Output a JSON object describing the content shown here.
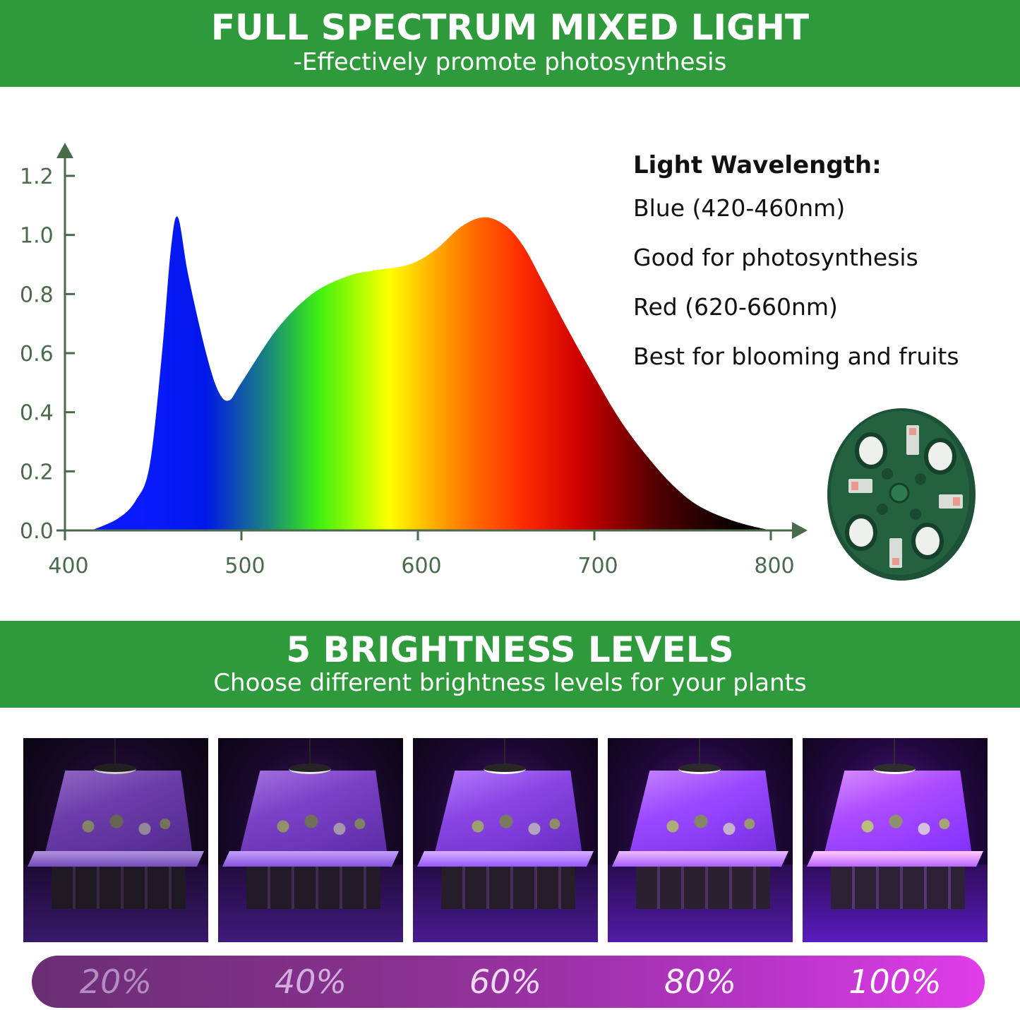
{
  "header": {
    "title": "FULL SPECTRUM MIXED LIGHT",
    "subtitle": "-Effectively promote photosynthesis"
  },
  "chart_data": {
    "type": "area",
    "title": "",
    "xlabel": "",
    "ylabel": "",
    "xlim": [
      400,
      800
    ],
    "ylim": [
      0,
      1.2
    ],
    "x_ticks": [
      "400",
      "500",
      "600",
      "700",
      "800"
    ],
    "y_ticks": [
      "0.0",
      "0.2",
      "0.4",
      "0.6",
      "0.8",
      "1.0",
      "1.2"
    ],
    "grid": false,
    "fill": "visible-spectrum gradient (blue to green to yellow to red to black)",
    "x": [
      415,
      430,
      440,
      448,
      455,
      460,
      464,
      470,
      480,
      487,
      493,
      500,
      520,
      540,
      560,
      575,
      595,
      610,
      625,
      638,
      650,
      660,
      670,
      685,
      700,
      715,
      730,
      745,
      760,
      780,
      800
    ],
    "values": [
      0,
      0.04,
      0.1,
      0.22,
      0.6,
      0.95,
      1.06,
      0.86,
      0.6,
      0.47,
      0.44,
      0.5,
      0.68,
      0.8,
      0.86,
      0.88,
      0.9,
      0.95,
      1.03,
      1.06,
      1.03,
      0.96,
      0.85,
      0.68,
      0.52,
      0.37,
      0.25,
      0.15,
      0.08,
      0.03,
      0
    ]
  },
  "info": {
    "heading": "Light Wavelength:",
    "lines": [
      "Blue  (420-460nm)",
      "Good for photosynthesis",
      "Red (620-660nm)",
      "Best for blooming and fruits"
    ]
  },
  "brightness": {
    "title": "5 BRIGHTNESS LEVELS",
    "subtitle": "Choose different brightness levels for your plants",
    "levels": [
      {
        "label": "20%",
        "value": 20
      },
      {
        "label": "40%",
        "value": 40
      },
      {
        "label": "60%",
        "value": 60
      },
      {
        "label": "80%",
        "value": 80
      },
      {
        "label": "100%",
        "value": 100
      }
    ]
  },
  "colors": {
    "brand_green": "#2f9a3c",
    "axis": "#4a6a4c",
    "disc": "#1f5a3a"
  }
}
